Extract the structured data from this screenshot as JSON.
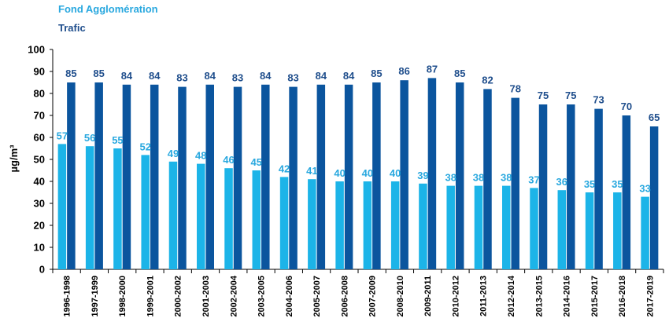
{
  "chart_data": {
    "type": "bar",
    "categories": [
      "1996-1998",
      "1997-1999",
      "1998-2000",
      "1999-2001",
      "2000-2002",
      "2001-2003",
      "2002-2004",
      "2003-2005",
      "2004-2006",
      "2005-2007",
      "2006-2008",
      "2007-2009",
      "2008-2010",
      "2009-2011",
      "2010-2012",
      "2011-2013",
      "2012-2014",
      "2013-2015",
      "2014-2016",
      "2015-2017",
      "2016-2018",
      "2017-2019"
    ],
    "series": [
      {
        "name": "Fond Agglomération",
        "color": "#1CB4E8",
        "label_color": "#29A8DF",
        "values": [
          57,
          56,
          55,
          52,
          49,
          48,
          46,
          45,
          42,
          41,
          40,
          40,
          40,
          39,
          38,
          38,
          38,
          37,
          36,
          35,
          35,
          33
        ]
      },
      {
        "name": "Trafic",
        "color": "#0B559E",
        "label_color": "#1F4E8C",
        "values": [
          85,
          85,
          84,
          84,
          83,
          84,
          83,
          84,
          83,
          84,
          84,
          85,
          86,
          87,
          85,
          82,
          78,
          75,
          75,
          73,
          70,
          65
        ]
      }
    ],
    "ylabel": "µg/m³",
    "ylim": [
      0,
      100
    ],
    "yticks": [
      0,
      10,
      20,
      30,
      40,
      50,
      60,
      70,
      80,
      90,
      100
    ],
    "legend_position": "top-left",
    "grid": false
  }
}
